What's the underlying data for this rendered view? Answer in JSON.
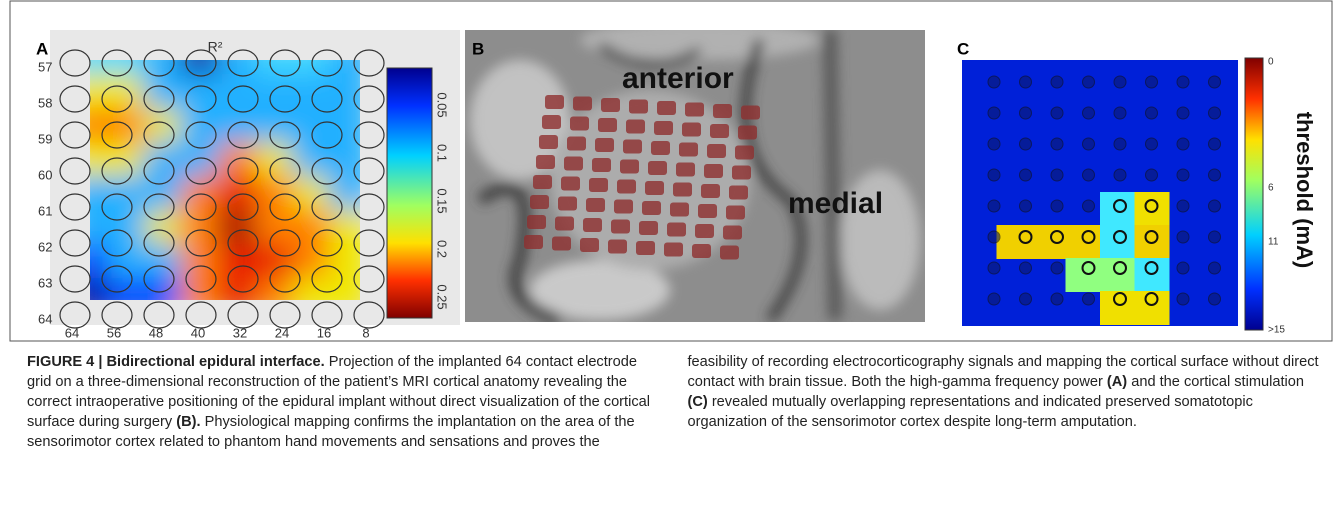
{
  "panels": [
    {
      "label": "A",
      "title": "R²",
      "row_labels": [
        "57",
        "58",
        "59",
        "60",
        "61",
        "62",
        "63",
        "64"
      ],
      "column_labels": [
        "64",
        "56",
        "48",
        "40",
        "32",
        "24",
        "16",
        "8"
      ],
      "colorbar_labels": [
        "0.05",
        "0.1",
        "0.15",
        "0.2",
        "0.25"
      ]
    },
    {
      "label": "B",
      "annotations": [
        "anterior",
        "medial"
      ]
    },
    {
      "label": "C",
      "colorbar_labels": [
        "0",
        "6",
        "11",
        ">15"
      ],
      "colorbar_title": "threshold (mA)"
    }
  ],
  "caption": {
    "runs": [
      {
        "text": "FIGURE 4 | Bidirectional epidural interface.",
        "bold": true
      },
      {
        "text": " Projection of the implanted 64 contact electrode grid on a three-dimensional reconstruction of the patient’s MRI cortical anatomy revealing the correct intraoperative positioning of the epidural implant without direct visualization of the cortical surface during surgery ",
        "bold": false
      },
      {
        "text": "(B).",
        "bold": true
      },
      {
        "text": " Physiological mapping confirms the implantation on the area of the sensorimotor cortex related to phantom hand movements and sensations and proves the feasibility of recording electrocorticography signals and mapping the cortical surface without direct contact with brain tissue. Both the high-gamma frequency power ",
        "bold": false
      },
      {
        "text": "(A)",
        "bold": true
      },
      {
        "text": " and the cortical stimulation ",
        "bold": false
      },
      {
        "text": "(C)",
        "bold": true
      },
      {
        "text": " revealed mutually overlapping representations and indicated preserved somatotopic organization of the sensorimotor cortex despite long-term amputation.",
        "bold": false
      }
    ]
  }
}
